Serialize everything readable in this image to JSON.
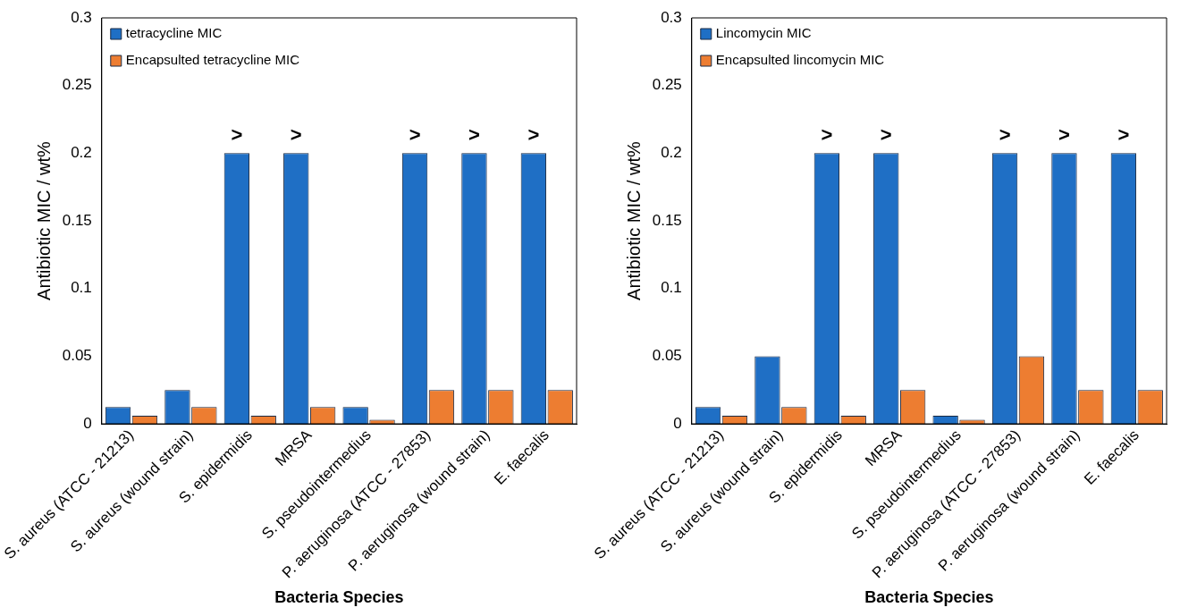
{
  "chart_data": [
    {
      "type": "bar",
      "xlabel": "Bacteria Species",
      "ylabel": "Antibiotic MIC / wt%",
      "categories": [
        "S. aureus (ATCC - 21213)",
        "S. aureus (wound strain)",
        "S. epidermidis",
        "MRSA",
        "S. pseudointermedius",
        "P. aeruginosa (ATCC - 27853)",
        "P. aeruginosa (wound strain)",
        "E. faecalis"
      ],
      "series": [
        {
          "name": "tetracycline MIC",
          "color": "#1f6fc5",
          "values": [
            0.0125,
            0.025,
            0.2,
            0.2,
            0.0125,
            0.2,
            0.2,
            0.2
          ]
        },
        {
          "name": "Encapsulted tetracycline MIC",
          "color": "#ed7d31",
          "values": [
            0.006,
            0.0125,
            0.006,
            0.0125,
            0.003,
            0.025,
            0.025,
            0.025
          ]
        }
      ],
      "ylim": [
        0,
        0.3
      ],
      "yticks": [
        0,
        0.05,
        0.1,
        0.15,
        0.2,
        0.25,
        0.3
      ],
      "grid": false,
      "legend": "top left",
      "annotations": [
        {
          "text": ">",
          "x": "S. epidermidis",
          "y": 0.2
        },
        {
          "text": ">",
          "x": "MRSA",
          "y": 0.2
        },
        {
          "text": ">",
          "x": "P. aeruginosa (ATCC - 27853)",
          "y": 0.2
        },
        {
          "text": ">",
          "x": "P. aeruginosa (wound strain)",
          "y": 0.2
        },
        {
          "text": ">",
          "x": "E. faecalis",
          "y": 0.2
        }
      ]
    },
    {
      "type": "bar",
      "xlabel": "Bacteria Species",
      "ylabel": "Antibiotic MIC / wt%",
      "categories": [
        "S. aureus (ATCC - 21213)",
        "S. aureus (wound strain)",
        "S. epidermidis",
        "MRSA",
        "S. pseudointermedius",
        "P. aeruginosa (ATCC - 27853)",
        "P. aeruginosa (wound strain)",
        "E. faecalis"
      ],
      "series": [
        {
          "name": "Lincomycin MIC",
          "color": "#1f6fc5",
          "values": [
            0.0125,
            0.05,
            0.2,
            0.2,
            0.006,
            0.2,
            0.2,
            0.2
          ]
        },
        {
          "name": "Encapsulted lincomycin MIC",
          "color": "#ed7d31",
          "values": [
            0.006,
            0.0125,
            0.006,
            0.025,
            0.003,
            0.05,
            0.025,
            0.025
          ]
        }
      ],
      "ylim": [
        0,
        0.3
      ],
      "yticks": [
        0,
        0.05,
        0.1,
        0.15,
        0.2,
        0.25,
        0.3
      ],
      "grid": false,
      "legend": "top left",
      "annotations": [
        {
          "text": ">",
          "x": "S. epidermidis",
          "y": 0.2
        },
        {
          "text": ">",
          "x": "MRSA",
          "y": 0.2
        },
        {
          "text": ">",
          "x": "P. aeruginosa (ATCC - 27853)",
          "y": 0.2
        },
        {
          "text": ">",
          "x": "P. aeruginosa (wound strain)",
          "y": 0.2
        },
        {
          "text": ">",
          "x": "E. faecalis",
          "y": 0.2
        }
      ]
    }
  ]
}
